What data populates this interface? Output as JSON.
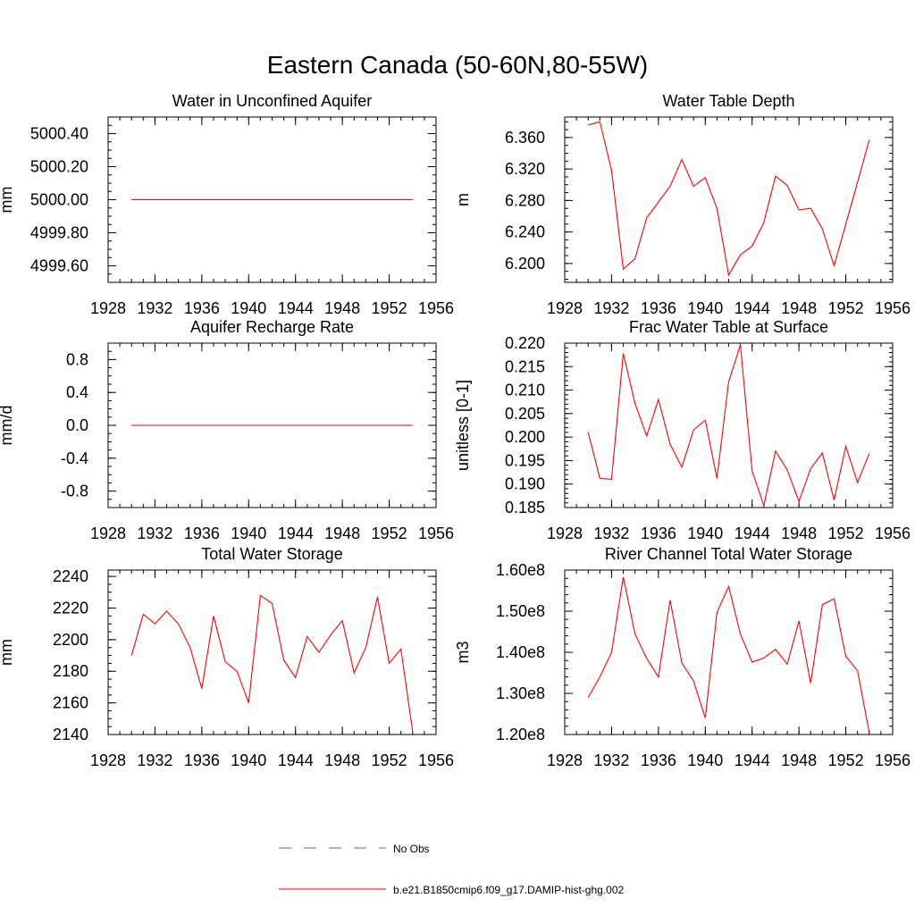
{
  "title": "Eastern Canada (50-60N,80-55W)",
  "x_ticks": [
    "1928",
    "1932",
    "1936",
    "1940",
    "1944",
    "1948",
    "1952",
    "1956"
  ],
  "legend": {
    "obs_label": "No Obs",
    "obs_color": "#5a5acc",
    "model_label": "b.e21.B1850cmip6.f09_g17.DAMIP-hist-ghg.002",
    "model_color": "#ff0000"
  },
  "chart_data": [
    {
      "type": "line",
      "title": "Water in Unconfined Aquifer",
      "ylabel": "mm",
      "xlim": [
        1928,
        1956
      ],
      "ylim": [
        4999.5,
        5000.5
      ],
      "y_ticks": [
        {
          "v": 4999.6,
          "label": "4999.60"
        },
        {
          "v": 4999.8,
          "label": "4999.80"
        },
        {
          "v": 5000.0,
          "label": "5000.00"
        },
        {
          "v": 5000.2,
          "label": "5000.20"
        },
        {
          "v": 5000.4,
          "label": "5000.40"
        }
      ],
      "minor_step": 0.05,
      "x": [
        1930,
        1931,
        1932,
        1933,
        1934,
        1935,
        1936,
        1937,
        1938,
        1939,
        1940,
        1941,
        1942,
        1943,
        1944,
        1945,
        1946,
        1947,
        1948,
        1949,
        1950,
        1951,
        1952,
        1953,
        1954
      ],
      "series": [
        {
          "values": [
            5000,
            5000,
            5000,
            5000,
            5000,
            5000,
            5000,
            5000,
            5000,
            5000,
            5000,
            5000,
            5000,
            5000,
            5000,
            5000,
            5000,
            5000,
            5000,
            5000,
            5000,
            5000,
            5000,
            5000,
            5000
          ]
        }
      ]
    },
    {
      "type": "line",
      "title": "Water Table Depth",
      "ylabel": "m",
      "xlim": [
        1928,
        1956
      ],
      "ylim": [
        6.176,
        6.386
      ],
      "y_ticks": [
        {
          "v": 6.2,
          "label": "6.200"
        },
        {
          "v": 6.24,
          "label": "6.240"
        },
        {
          "v": 6.28,
          "label": "6.280"
        },
        {
          "v": 6.32,
          "label": "6.320"
        },
        {
          "v": 6.36,
          "label": "6.360"
        }
      ],
      "minor_step": 0.01,
      "x": [
        1930,
        1931,
        1932,
        1933,
        1934,
        1935,
        1936,
        1937,
        1938,
        1939,
        1940,
        1941,
        1942,
        1943,
        1944,
        1945,
        1946,
        1947,
        1948,
        1949,
        1950,
        1951,
        1952,
        1953,
        1954
      ],
      "series": [
        {
          "values": [
            6.376,
            6.38,
            6.318,
            6.193,
            6.206,
            6.258,
            6.278,
            6.298,
            6.332,
            6.298,
            6.309,
            6.27,
            6.185,
            6.211,
            6.222,
            6.252,
            6.311,
            6.299,
            6.268,
            6.27,
            6.244,
            6.197,
            6.25,
            6.303,
            6.357
          ]
        }
      ]
    },
    {
      "type": "line",
      "title": "Aquifer Recharge Rate",
      "ylabel": "mm/d",
      "xlim": [
        1928,
        1956
      ],
      "ylim": [
        -1.0,
        1.0
      ],
      "y_ticks": [
        {
          "v": -0.8,
          "label": "-0.8"
        },
        {
          "v": -0.4,
          "label": "-0.4"
        },
        {
          "v": 0.0,
          "label": "0.0"
        },
        {
          "v": 0.4,
          "label": "0.4"
        },
        {
          "v": 0.8,
          "label": "0.8"
        }
      ],
      "minor_step": 0.1,
      "x": [
        1930,
        1931,
        1932,
        1933,
        1934,
        1935,
        1936,
        1937,
        1938,
        1939,
        1940,
        1941,
        1942,
        1943,
        1944,
        1945,
        1946,
        1947,
        1948,
        1949,
        1950,
        1951,
        1952,
        1953,
        1954
      ],
      "series": [
        {
          "values": [
            0,
            0,
            0,
            0,
            0,
            0,
            0,
            0,
            0,
            0,
            0,
            0,
            0,
            0,
            0,
            0,
            0,
            0,
            0,
            0,
            0,
            0,
            0,
            0,
            0
          ]
        }
      ]
    },
    {
      "type": "line",
      "title": "Frac Water Table at Surface",
      "ylabel": "unitless [0-1]",
      "xlim": [
        1928,
        1956
      ],
      "ylim": [
        0.185,
        0.22
      ],
      "y_ticks": [
        {
          "v": 0.185,
          "label": "0.185"
        },
        {
          "v": 0.19,
          "label": "0.190"
        },
        {
          "v": 0.195,
          "label": "0.195"
        },
        {
          "v": 0.2,
          "label": "0.200"
        },
        {
          "v": 0.205,
          "label": "0.205"
        },
        {
          "v": 0.21,
          "label": "0.210"
        },
        {
          "v": 0.215,
          "label": "0.215"
        },
        {
          "v": 0.22,
          "label": "0.220"
        }
      ],
      "minor_step": 0.001,
      "x": [
        1930,
        1931,
        1932,
        1933,
        1934,
        1935,
        1936,
        1937,
        1938,
        1939,
        1940,
        1941,
        1942,
        1943,
        1944,
        1945,
        1946,
        1947,
        1948,
        1949,
        1950,
        1951,
        1952,
        1953,
        1954
      ],
      "series": [
        {
          "values": [
            0.201,
            0.1912,
            0.191,
            0.2178,
            0.2072,
            0.2002,
            0.208,
            0.1985,
            0.1936,
            0.2015,
            0.2036,
            0.1912,
            0.2118,
            0.2196,
            0.1928,
            0.1854,
            0.197,
            0.193,
            0.1863,
            0.1933,
            0.1966,
            0.1866,
            0.198,
            0.1903,
            0.1965
          ]
        }
      ]
    },
    {
      "type": "line",
      "title": "Total Water Storage",
      "ylabel": "mm",
      "xlim": [
        1928,
        1956
      ],
      "ylim": [
        2140,
        2244
      ],
      "y_ticks": [
        {
          "v": 2140,
          "label": "2140"
        },
        {
          "v": 2160,
          "label": "2160"
        },
        {
          "v": 2180,
          "label": "2180"
        },
        {
          "v": 2200,
          "label": "2200"
        },
        {
          "v": 2220,
          "label": "2220"
        },
        {
          "v": 2240,
          "label": "2240"
        }
      ],
      "minor_step": 5,
      "x": [
        1930,
        1931,
        1932,
        1933,
        1934,
        1935,
        1936,
        1937,
        1938,
        1939,
        1940,
        1941,
        1942,
        1943,
        1944,
        1945,
        1946,
        1947,
        1948,
        1949,
        1950,
        1951,
        1952,
        1953,
        1954
      ],
      "series": [
        {
          "values": [
            2190,
            2216,
            2210,
            2218,
            2210,
            2195,
            2169,
            2215,
            2186,
            2180,
            2160,
            2228,
            2223,
            2187,
            2176,
            2202,
            2192,
            2203,
            2212,
            2179,
            2195,
            2227,
            2185,
            2194,
            2142
          ]
        }
      ]
    },
    {
      "type": "line",
      "title": "River Channel Total Water Storage",
      "ylabel": "m3",
      "xlim": [
        1928,
        1956
      ],
      "ylim": [
        120000000,
        160000000
      ],
      "y_ticks": [
        {
          "v": 120000000,
          "label": "1.20e8"
        },
        {
          "v": 130000000,
          "label": "1.30e8"
        },
        {
          "v": 140000000,
          "label": "1.40e8"
        },
        {
          "v": 150000000,
          "label": "1.50e8"
        },
        {
          "v": 160000000,
          "label": "1.60e8"
        }
      ],
      "minor_step": 2000000,
      "x": [
        1930,
        1931,
        1932,
        1933,
        1934,
        1935,
        1936,
        1937,
        1938,
        1939,
        1940,
        1941,
        1942,
        1943,
        1944,
        1945,
        1946,
        1947,
        1948,
        1949,
        1950,
        1951,
        1952,
        1953,
        1954
      ],
      "series": [
        {
          "values": [
            129000000,
            134000000,
            140000000,
            158300000,
            144500000,
            138500000,
            134000000,
            152700000,
            137400000,
            133000000,
            124000000,
            149700000,
            156000000,
            144400000,
            137600000,
            138600000,
            140700000,
            137100000,
            147600000,
            132500000,
            151600000,
            153000000,
            139000000,
            135500000,
            120500000
          ]
        }
      ]
    }
  ]
}
